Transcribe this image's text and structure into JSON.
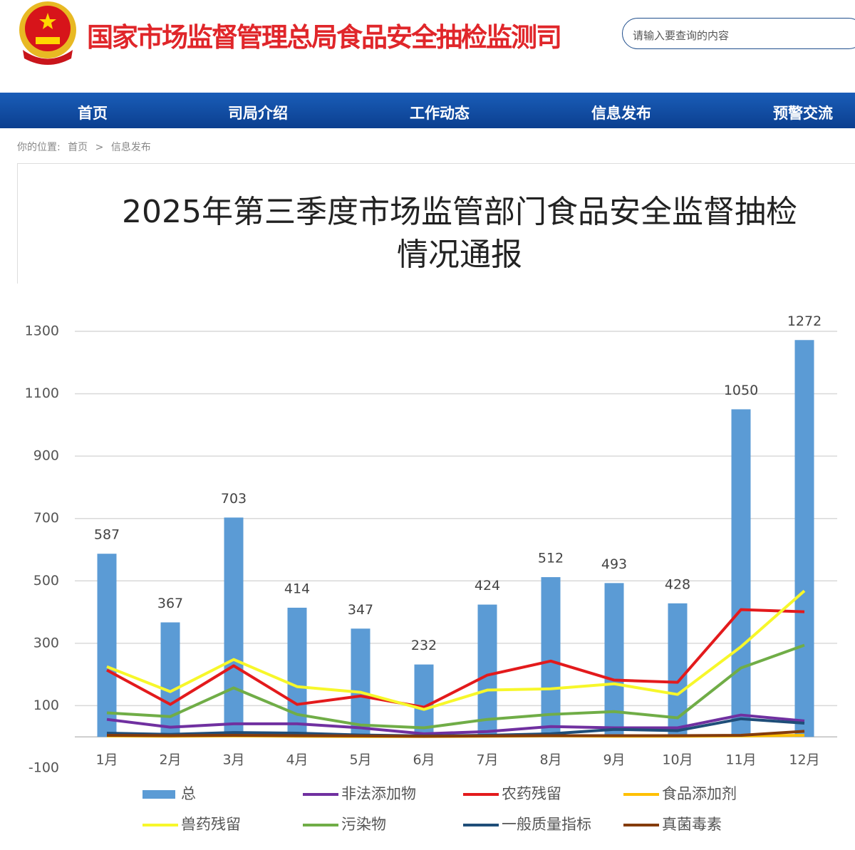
{
  "header": {
    "title": "国家市场监督管理总局食品安全抽检监测司",
    "search_placeholder": "请输入要查询的内容"
  },
  "nav": [
    "首页",
    "司局介绍",
    "工作动态",
    "信息发布",
    "预警交流"
  ],
  "breadcrumb": {
    "label": "你的位置:",
    "items": [
      "首页",
      "信息发布"
    ],
    "separator": ">"
  },
  "article": {
    "title": "2025年第三季度市场监管部门食品安全监督抽检情况通报"
  },
  "chart_data": {
    "type": "bar",
    "categories": [
      "1月",
      "2月",
      "3月",
      "4月",
      "5月",
      "6月",
      "7月",
      "8月",
      "9月",
      "10月",
      "11月",
      "12月"
    ],
    "ylim": [
      -100,
      1300
    ],
    "yticks": [
      -100,
      100,
      300,
      500,
      700,
      900,
      1100,
      1300
    ],
    "grid": true,
    "series": [
      {
        "name": "总",
        "type": "bar",
        "color": "#5b9bd5",
        "values": [
          587,
          367,
          703,
          414,
          347,
          232,
          424,
          512,
          493,
          428,
          1050,
          1272
        ]
      },
      {
        "name": "非法添加物",
        "type": "line",
        "color": "#7030a0",
        "values": [
          56,
          31,
          42,
          42,
          29,
          10,
          17,
          33,
          29,
          29,
          70,
          51
        ]
      },
      {
        "name": "农药残留",
        "type": "line",
        "color": "#e31a1c",
        "values": [
          214,
          104,
          228,
          104,
          131,
          95,
          198,
          243,
          182,
          175,
          408,
          401
        ]
      },
      {
        "name": "食品添加剂",
        "type": "line",
        "color": "#ffc000",
        "values": [
          3,
          2,
          3,
          2,
          1,
          1,
          2,
          3,
          2,
          2,
          3,
          5
        ]
      },
      {
        "name": "兽药残留",
        "type": "line",
        "color": "#f7f72a",
        "values": [
          225,
          145,
          248,
          161,
          143,
          88,
          150,
          154,
          170,
          136,
          289,
          468
        ]
      },
      {
        "name": "污染物",
        "type": "line",
        "color": "#70ad47",
        "values": [
          77,
          65,
          157,
          72,
          38,
          29,
          56,
          72,
          81,
          61,
          221,
          294
        ]
      },
      {
        "name": "一般质量指标",
        "type": "line",
        "color": "#1f4e79",
        "values": [
          12,
          8,
          14,
          12,
          6,
          3,
          5,
          10,
          24,
          20,
          58,
          44
        ]
      },
      {
        "name": "真菌毒素",
        "type": "line",
        "color": "#843c0c",
        "values": [
          5,
          4,
          5,
          4,
          3,
          2,
          3,
          4,
          4,
          4,
          5,
          18
        ]
      }
    ]
  }
}
